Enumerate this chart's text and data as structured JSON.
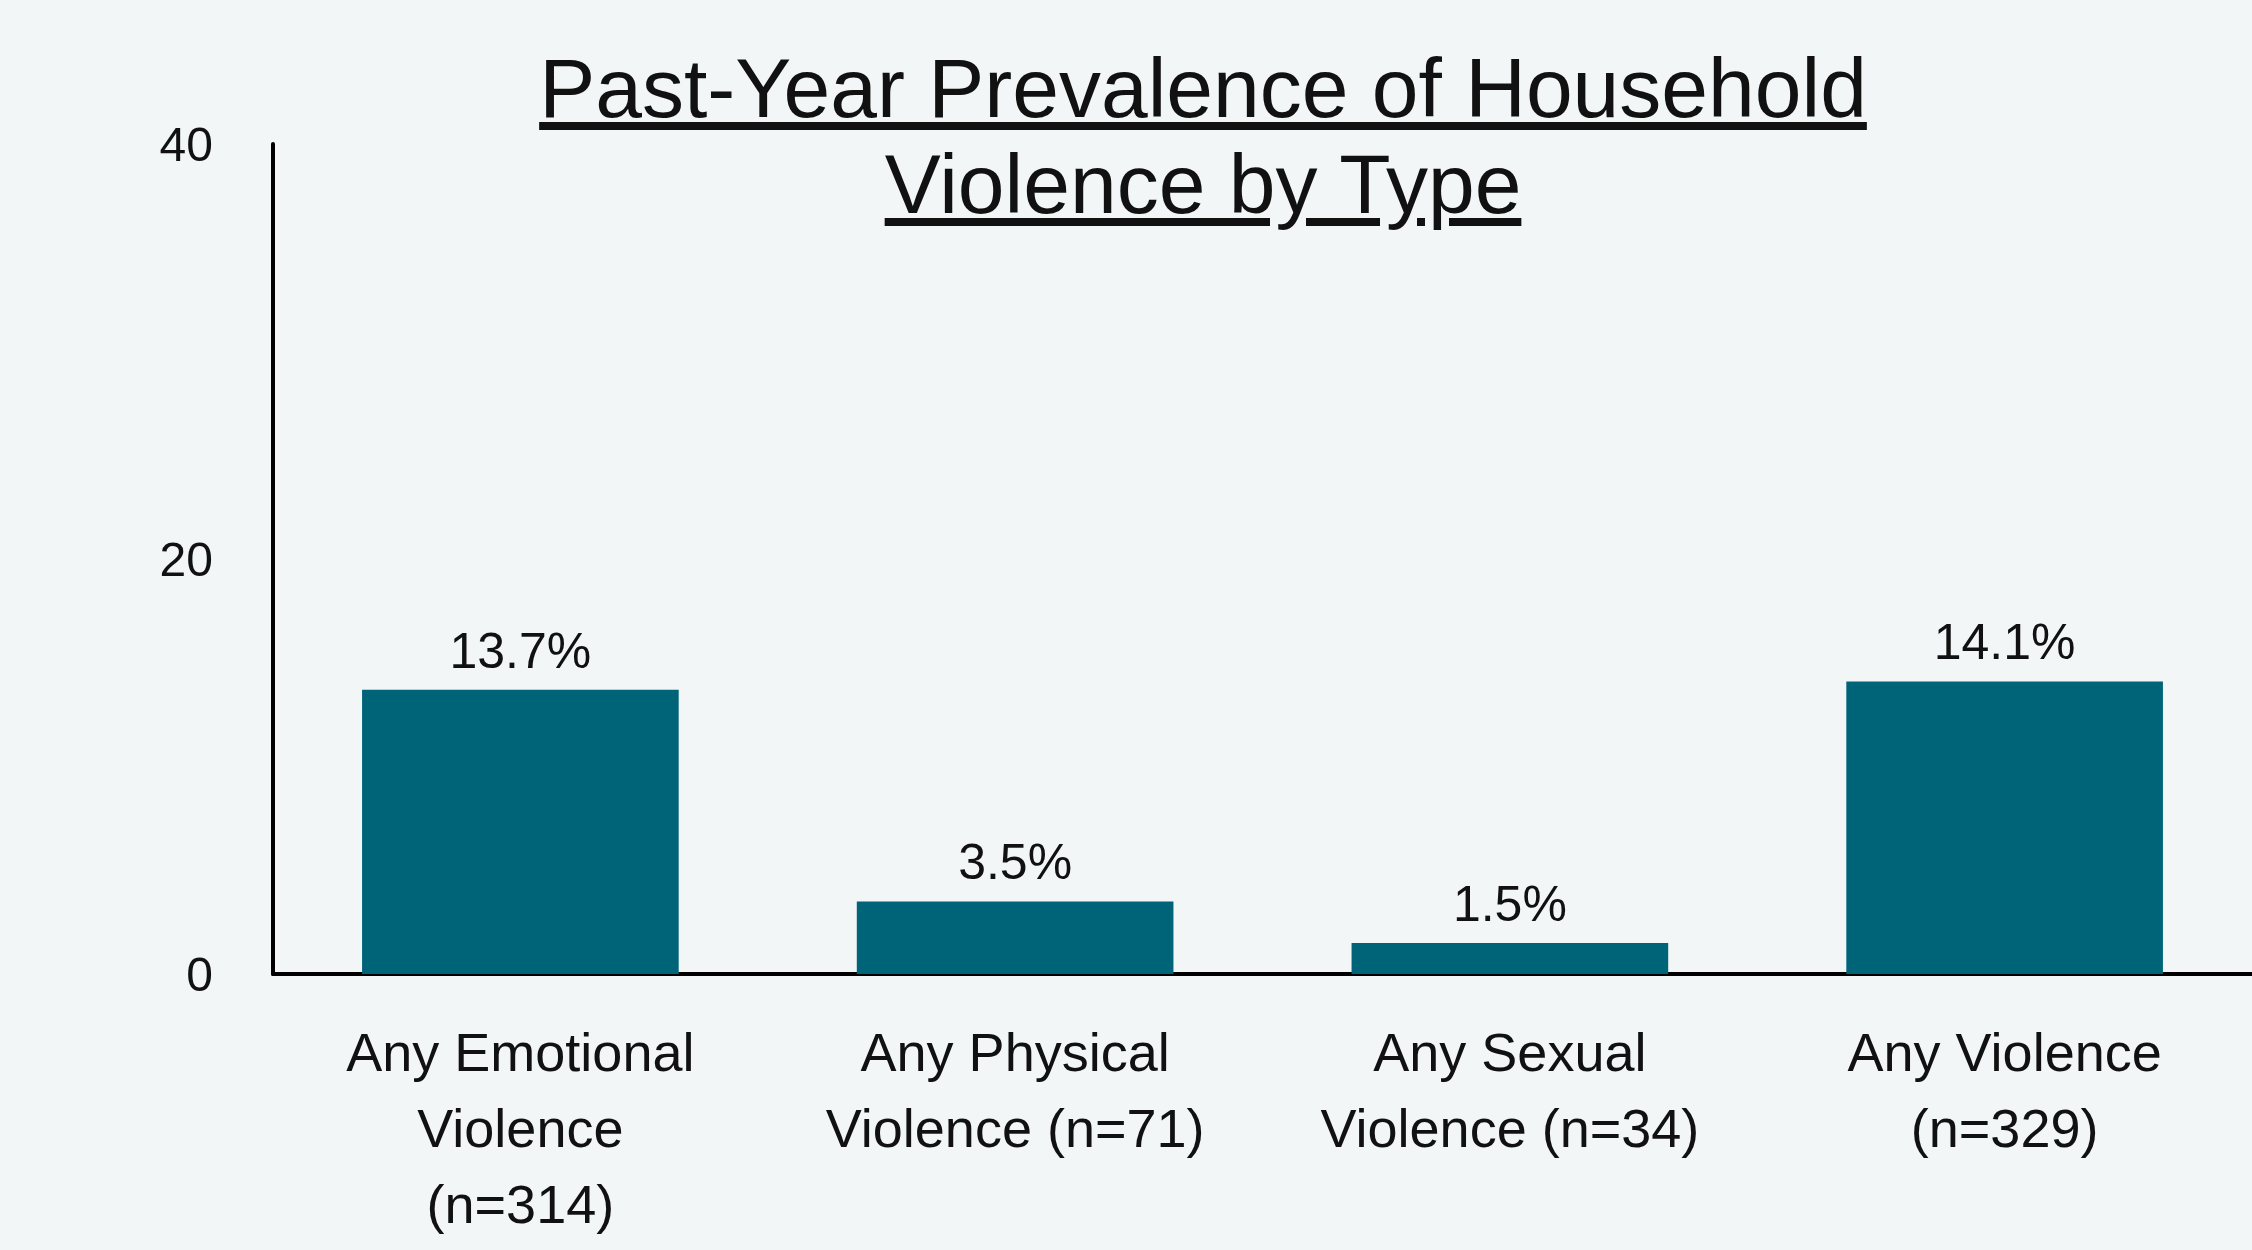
{
  "chart_data": {
    "type": "bar",
    "title": "Past-Year Prevalence of Household Violence by Type",
    "categories": [
      "Any Emotional\nViolence\n(n=314)",
      "Any Physical\nViolence (n=71)",
      "Any Sexual\nViolence (n=34)",
      "Any Violence\n(n=329)"
    ],
    "values": [
      13.7,
      3.5,
      1.5,
      14.1
    ],
    "value_labels": [
      "13.7%",
      "3.5%",
      "1.5%",
      "14.1%"
    ],
    "color": "#006479",
    "ylim": [
      0,
      40
    ],
    "yticks": [
      0,
      20,
      40
    ]
  }
}
